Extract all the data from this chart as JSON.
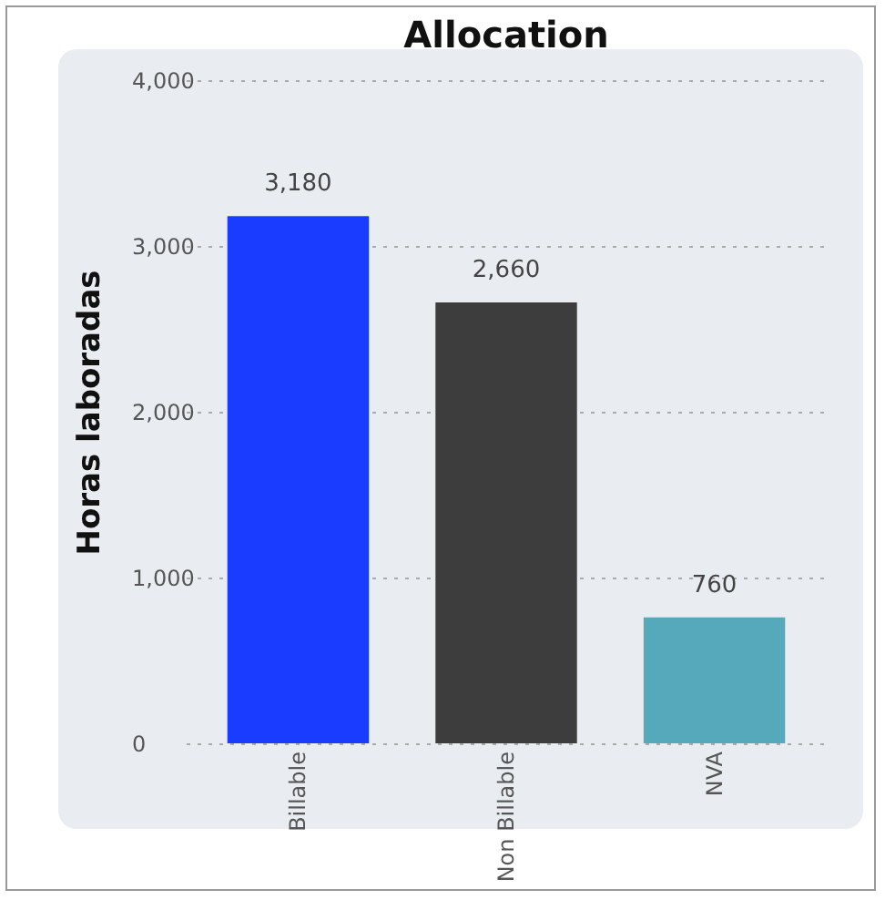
{
  "chart_data": {
    "type": "bar",
    "title": "Allocation",
    "ylabel": "Horas laboradas",
    "categories": [
      "Billable",
      "Non Billable",
      "NVA"
    ],
    "values": [
      3180,
      2660,
      760
    ],
    "colors": [
      "#1a3cff",
      "#3d3d3d",
      "#56a9ba"
    ],
    "value_labels": [
      "3,180",
      "2,660",
      "760"
    ],
    "ylim": [
      0,
      4000
    ],
    "yticks": [
      0,
      {
        "value": 1000,
        "label": "1,000"
      },
      {
        "value": 2000,
        "label": "2,000"
      },
      {
        "value": 3000,
        "label": "3,000"
      },
      {
        "value": 4000,
        "label": "4,000"
      }
    ],
    "grid": "y"
  }
}
